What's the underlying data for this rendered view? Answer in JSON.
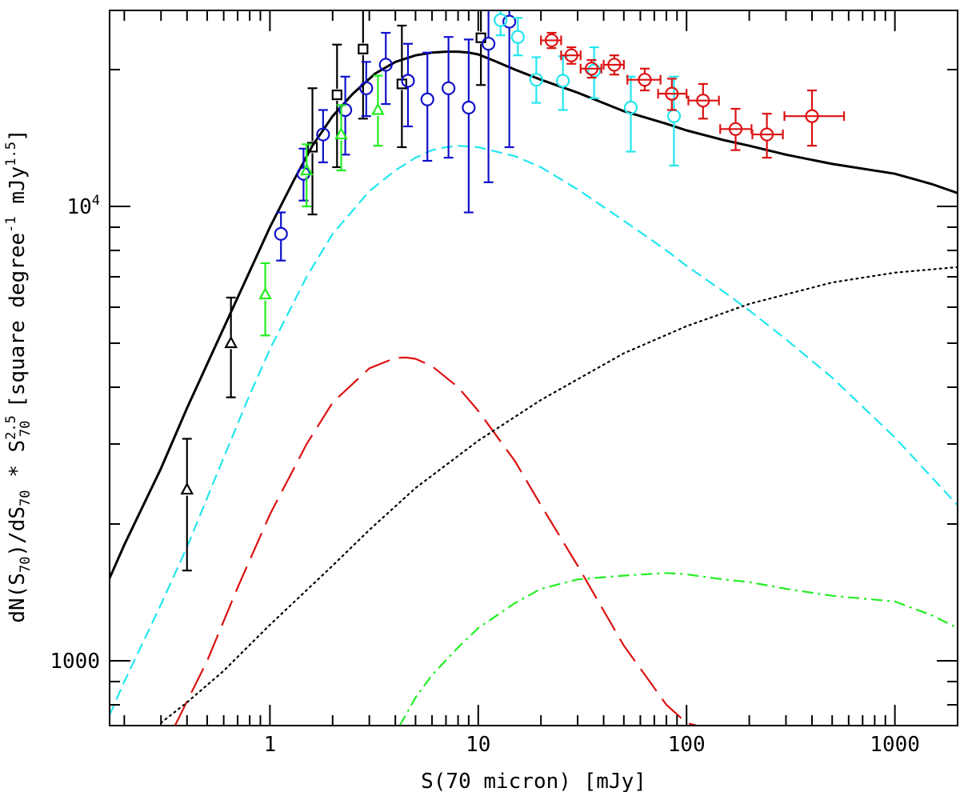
{
  "chart_data": {
    "type": "scatter",
    "xscale": "log",
    "yscale": "log",
    "xlim": [
      0.17,
      2000
    ],
    "ylim": [
      720,
      27000
    ],
    "xlabel": "S(70 micron) [mJy]",
    "ylabel": "dN(S70)/dS70 * S70^2.5 [square degree^-1 mJy^1.5]",
    "ylabel_parts": {
      "p1": "dN(S",
      "s1": "70",
      "p2": ")/dS",
      "s2": "70",
      "p3": " * S",
      "sup3": "2.5",
      "sub3": "70",
      "p4": " [square degree",
      "sup4": "-1",
      "p5": " mJy",
      "sup5": "1.5",
      "p6": "]"
    },
    "x_ticks": [
      {
        "value": 1,
        "label": "1"
      },
      {
        "value": 10,
        "label": "10"
      },
      {
        "value": 100,
        "label": "100"
      },
      {
        "value": 1000,
        "label": "1000"
      }
    ],
    "y_ticks": [
      {
        "value": 1000,
        "label": "1000"
      },
      {
        "value": 10000,
        "label": "10",
        "sup": "4"
      }
    ],
    "colors": {
      "black": "#000000",
      "blue": "#1010cc",
      "green": "#22ee22",
      "cyan": "#22e6ee",
      "red": "#dd1111"
    },
    "series": [
      {
        "name": "total-model",
        "kind": "line",
        "color": "#000000",
        "style": "solid",
        "x": [
          0.17,
          0.2,
          0.3,
          0.4,
          0.6,
          0.8,
          1.0,
          1.3,
          1.6,
          2.0,
          2.5,
          3.2,
          4.0,
          5.0,
          6.0,
          7.0,
          8.0,
          9.0,
          10,
          12,
          15,
          20,
          30,
          50,
          80,
          100,
          150,
          200,
          300,
          500,
          1000,
          1500,
          2000
        ],
        "y": [
          1520,
          1800,
          2650,
          3600,
          5400,
          7200,
          9000,
          11400,
          13600,
          15800,
          17700,
          19600,
          20800,
          21500,
          21800,
          21900,
          21900,
          21800,
          21600,
          20900,
          20000,
          19000,
          17800,
          16200,
          15200,
          14700,
          14000,
          13600,
          13000,
          12400,
          11800,
          11200,
          10700
        ]
      },
      {
        "name": "cyan-dashed-model",
        "kind": "line",
        "color": "#22e6ee",
        "style": "dashed",
        "x": [
          0.17,
          0.2,
          0.3,
          0.4,
          0.6,
          0.8,
          1.0,
          1.5,
          2.0,
          3.0,
          4.0,
          5.0,
          6.0,
          7.0,
          8.0,
          10,
          15,
          20,
          30,
          50,
          80,
          100,
          150,
          200,
          300,
          500,
          1000,
          2000
        ],
        "y": [
          760,
          900,
          1330,
          1780,
          2800,
          3850,
          4850,
          7000,
          8700,
          10800,
          12000,
          12800,
          13300,
          13500,
          13600,
          13500,
          12900,
          12200,
          10900,
          9300,
          8000,
          7400,
          6500,
          5900,
          5100,
          4200,
          3100,
          2200
        ]
      },
      {
        "name": "red-longdash-model",
        "kind": "line",
        "color": "#dd1111",
        "style": "longdash",
        "x": [
          0.35,
          0.5,
          0.7,
          1.0,
          1.5,
          2.0,
          3.0,
          4.0,
          4.5,
          5.0,
          6.0,
          8.0,
          10,
          15,
          20,
          30,
          50,
          80,
          100,
          140
        ],
        "y": [
          720,
          1000,
          1450,
          2100,
          3000,
          3700,
          4400,
          4640,
          4650,
          4620,
          4450,
          4000,
          3550,
          2750,
          2200,
          1620,
          1080,
          800,
          730,
          700
        ]
      },
      {
        "name": "dotted-model",
        "kind": "line",
        "color": "#000000",
        "style": "dotted",
        "x": [
          0.3,
          0.4,
          0.6,
          1.0,
          1.5,
          2.0,
          3.0,
          5.0,
          10,
          20,
          50,
          100,
          200,
          500,
          1000,
          2000
        ],
        "y": [
          730,
          810,
          950,
          1200,
          1430,
          1620,
          1940,
          2400,
          3050,
          3750,
          4750,
          5450,
          6100,
          6800,
          7150,
          7350
        ]
      },
      {
        "name": "green-dashdot-model",
        "kind": "line",
        "color": "#22ee22",
        "style": "dashdot",
        "x": [
          4.2,
          5.0,
          6.0,
          8.0,
          10,
          15,
          20,
          30,
          50,
          80,
          100,
          150,
          200,
          300,
          500,
          1000,
          1500,
          2000
        ],
        "y": [
          720,
          830,
          930,
          1070,
          1180,
          1340,
          1440,
          1510,
          1540,
          1560,
          1550,
          1510,
          1490,
          1440,
          1390,
          1350,
          1260,
          1180
        ]
      }
    ],
    "points": [
      {
        "marker": "triangle",
        "color": "#000000",
        "data": [
          {
            "x": 0.4,
            "y": 2380,
            "ylo": 1580,
            "yhi": 3080
          },
          {
            "x": 0.65,
            "y": 5000,
            "ylo": 3800,
            "yhi": 6300
          }
        ]
      },
      {
        "marker": "square",
        "color": "#000000",
        "data": [
          {
            "x": 1.6,
            "y": 13500,
            "ylo": 9600,
            "yhi": 18200
          },
          {
            "x": 2.1,
            "y": 17600,
            "ylo": 12200,
            "yhi": 22700
          },
          {
            "x": 2.8,
            "y": 22200,
            "ylo": 15600,
            "yhi": 28500
          },
          {
            "x": 4.3,
            "y": 18600,
            "ylo": 13500,
            "yhi": 25000
          },
          {
            "x": 10.3,
            "y": 23500,
            "ylo": 18500,
            "yhi": 29500
          }
        ]
      },
      {
        "marker": "circle",
        "color": "#1010cc",
        "data": [
          {
            "x": 1.13,
            "y": 8700,
            "ylo": 7600,
            "yhi": 9700
          },
          {
            "x": 1.45,
            "y": 11800,
            "ylo": 10300,
            "yhi": 13400
          },
          {
            "x": 1.8,
            "y": 14400,
            "ylo": 12500,
            "yhi": 16300
          },
          {
            "x": 2.3,
            "y": 16300,
            "ylo": 13000,
            "yhi": 19300
          },
          {
            "x": 2.9,
            "y": 18200,
            "ylo": 15800,
            "yhi": 20800
          },
          {
            "x": 3.6,
            "y": 20500,
            "ylo": 16800,
            "yhi": 24100
          },
          {
            "x": 4.6,
            "y": 18900,
            "ylo": 15000,
            "yhi": 22800
          },
          {
            "x": 5.7,
            "y": 17200,
            "ylo": 12600,
            "yhi": 21800
          },
          {
            "x": 7.2,
            "y": 18200,
            "ylo": 12800,
            "yhi": 23600
          },
          {
            "x": 9.0,
            "y": 16500,
            "ylo": 9700,
            "yhi": 23300
          },
          {
            "x": 11.2,
            "y": 22800,
            "ylo": 11300,
            "yhi": 34500
          },
          {
            "x": 14.1,
            "y": 25500,
            "ylo": 13500,
            "yhi": 37500
          }
        ]
      },
      {
        "marker": "triangle",
        "color": "#22ee22",
        "data": [
          {
            "x": 0.95,
            "y": 6400,
            "ylo": 5200,
            "yhi": 7500
          },
          {
            "x": 1.5,
            "y": 12000,
            "ylo": 10000,
            "yhi": 13700
          },
          {
            "x": 2.2,
            "y": 14400,
            "ylo": 12000,
            "yhi": 16700
          },
          {
            "x": 3.3,
            "y": 16300,
            "ylo": 13600,
            "yhi": 19400
          }
        ]
      },
      {
        "marker": "circle",
        "color": "#22e6ee",
        "data": [
          {
            "x": 12.8,
            "y": 25700,
            "ylo": 23800,
            "yhi": 27500
          },
          {
            "x": 15.5,
            "y": 23600,
            "ylo": 21500,
            "yhi": 26000
          },
          {
            "x": 19.0,
            "y": 19000,
            "ylo": 16900,
            "yhi": 21300
          },
          {
            "x": 25.5,
            "y": 18900,
            "ylo": 16300,
            "yhi": 21400
          },
          {
            "x": 36.0,
            "y": 19900,
            "ylo": 17300,
            "yhi": 22400
          },
          {
            "x": 54.0,
            "y": 16500,
            "ylo": 13200,
            "yhi": 19300
          },
          {
            "x": 87.0,
            "y": 15800,
            "ylo": 12300,
            "yhi": 19300
          }
        ]
      },
      {
        "marker": "circle",
        "color": "#dd1111",
        "data": [
          {
            "x": 22.5,
            "y": 23200,
            "ylo": 22300,
            "yhi": 24100,
            "xlo": 20.0,
            "xhi": 25.0
          },
          {
            "x": 28.0,
            "y": 21500,
            "ylo": 20600,
            "yhi": 22400,
            "xlo": 25.0,
            "xhi": 31.0
          },
          {
            "x": 35.0,
            "y": 20100,
            "ylo": 19200,
            "yhi": 21000,
            "xlo": 31.0,
            "xhi": 39.0
          },
          {
            "x": 45.0,
            "y": 20500,
            "ylo": 19500,
            "yhi": 21500,
            "xlo": 40.0,
            "xhi": 50.0
          },
          {
            "x": 63.0,
            "y": 19000,
            "ylo": 18000,
            "yhi": 20100,
            "xlo": 52.0,
            "xhi": 75.0
          },
          {
            "x": 85.0,
            "y": 17700,
            "ylo": 16300,
            "yhi": 19100,
            "xlo": 73.0,
            "xhi": 100.0
          },
          {
            "x": 120.0,
            "y": 17100,
            "ylo": 15600,
            "yhi": 18600,
            "xlo": 102.0,
            "xhi": 143.0
          },
          {
            "x": 172.0,
            "y": 14800,
            "ylo": 13300,
            "yhi": 16400,
            "xlo": 145.0,
            "xhi": 205.0
          },
          {
            "x": 243.0,
            "y": 14400,
            "ylo": 12800,
            "yhi": 16000,
            "xlo": 207.0,
            "xhi": 290.0
          },
          {
            "x": 400.0,
            "y": 15800,
            "ylo": 13600,
            "yhi": 18000,
            "xlo": 295.0,
            "xhi": 570.0
          }
        ]
      }
    ]
  }
}
